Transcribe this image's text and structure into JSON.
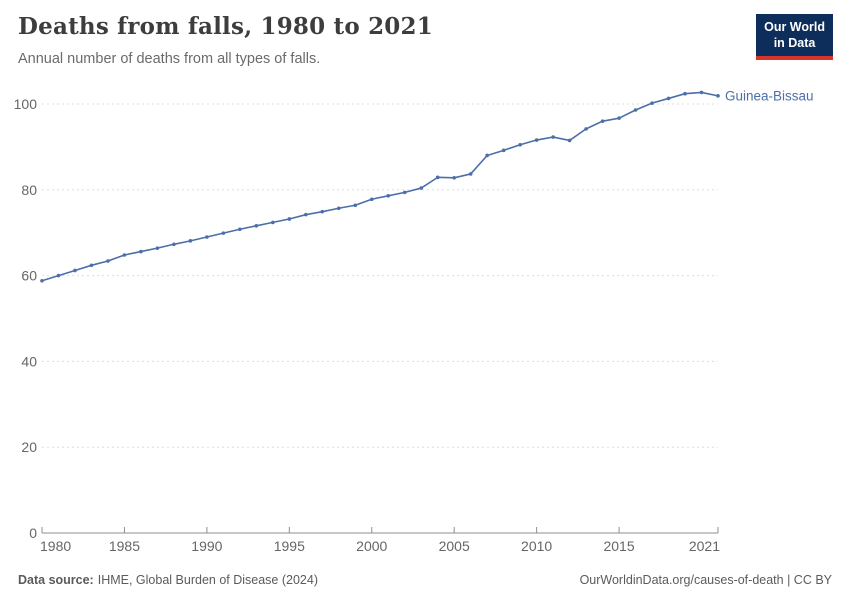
{
  "header": {
    "title": "Deaths from falls, 1980 to 2021",
    "subtitle": "Annual number of deaths from all types of falls."
  },
  "logo": {
    "line1": "Our World",
    "line2": "in Data",
    "bg_color": "#0d2e5a",
    "accent_color": "#d7352c"
  },
  "chart_data": {
    "type": "line",
    "title": "Deaths from falls, 1980 to 2021",
    "subtitle": "Annual number of deaths from all types of falls.",
    "xlabel": "",
    "ylabel": "",
    "xlim": [
      1980,
      2021
    ],
    "ylim": [
      0,
      107
    ],
    "x_ticks": [
      1980,
      1985,
      1990,
      1995,
      2000,
      2005,
      2010,
      2015,
      2021
    ],
    "y_ticks": [
      0,
      20,
      40,
      60,
      80,
      100
    ],
    "grid": "horizontal dashed",
    "legend_position": "end-of-line label",
    "colors": {
      "line": "#4c6fa9",
      "grid": "#dddddd",
      "axis": "#8f8f8f",
      "tick_label": "#666666"
    },
    "series": [
      {
        "name": "Guinea-Bissau",
        "color": "#4c6fa9",
        "x": [
          1980,
          1981,
          1982,
          1983,
          1984,
          1985,
          1986,
          1987,
          1988,
          1989,
          1990,
          1991,
          1992,
          1993,
          1994,
          1995,
          1996,
          1997,
          1998,
          1999,
          2000,
          2001,
          2002,
          2003,
          2004,
          2005,
          2006,
          2007,
          2008,
          2009,
          2010,
          2011,
          2012,
          2013,
          2014,
          2015,
          2016,
          2017,
          2018,
          2019,
          2020,
          2021
        ],
        "values": [
          58.8,
          60.0,
          61.2,
          62.4,
          63.4,
          64.8,
          65.6,
          66.4,
          67.3,
          68.1,
          69.0,
          69.9,
          70.8,
          71.6,
          72.4,
          73.2,
          74.2,
          74.9,
          75.7,
          76.4,
          77.8,
          78.6,
          79.4,
          80.4,
          82.9,
          82.8,
          83.7,
          88.0,
          89.2,
          90.5,
          91.6,
          92.3,
          91.5,
          94.2,
          96.0,
          96.7,
          98.6,
          100.2,
          101.3,
          102.4,
          102.7,
          101.9
        ]
      }
    ]
  },
  "footer": {
    "source_label": "Data source:",
    "source_text": "IHME, Global Burden of Disease (2024)",
    "credit": "OurWorldinData.org/causes-of-death | CC BY"
  }
}
